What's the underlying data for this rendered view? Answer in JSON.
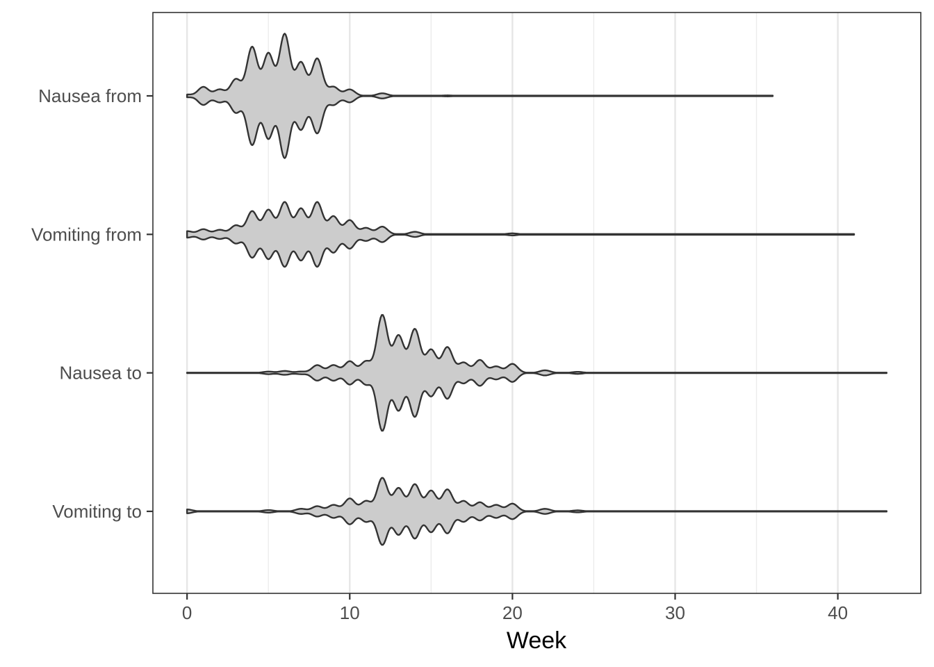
{
  "chart_data": {
    "type": "violin",
    "orientation": "horizontal",
    "title": "",
    "xlabel": "Week",
    "ylabel": "",
    "xlim": [
      -2.1,
      45.1
    ],
    "xticks": [
      0,
      10,
      20,
      30,
      40
    ],
    "xtick_labels": [
      "0",
      "10",
      "20",
      "30",
      "40"
    ],
    "grid": {
      "major_x": true,
      "minor_x": true,
      "y": false
    },
    "fill_color": "#cccccc",
    "outline_color": "#333333",
    "categories": [
      "Nausea from",
      "Vomiting from",
      "Nausea to",
      "Vomiting to"
    ],
    "series": [
      {
        "name": "Nausea from",
        "range": [
          0,
          36
        ],
        "density": [
          [
            0,
            0.01
          ],
          [
            1,
            0.07
          ],
          [
            2,
            0.05
          ],
          [
            3,
            0.13
          ],
          [
            4,
            0.38
          ],
          [
            5,
            0.33
          ],
          [
            6,
            0.48
          ],
          [
            7,
            0.26
          ],
          [
            8,
            0.29
          ],
          [
            9,
            0.07
          ],
          [
            10,
            0.05
          ],
          [
            12,
            0.02
          ],
          [
            16,
            0.004
          ],
          [
            36,
            0.002
          ]
        ]
      },
      {
        "name": "Vomiting from",
        "range": [
          0,
          41
        ],
        "density": [
          [
            0,
            0.025
          ],
          [
            1,
            0.04
          ],
          [
            2,
            0.035
          ],
          [
            3,
            0.07
          ],
          [
            4,
            0.18
          ],
          [
            5,
            0.19
          ],
          [
            6,
            0.25
          ],
          [
            7,
            0.2
          ],
          [
            8,
            0.25
          ],
          [
            9,
            0.14
          ],
          [
            10,
            0.11
          ],
          [
            11,
            0.05
          ],
          [
            12,
            0.06
          ],
          [
            14,
            0.02
          ],
          [
            20,
            0.008
          ],
          [
            41,
            0.003
          ]
        ]
      },
      {
        "name": "Nausea to",
        "range": [
          0,
          43
        ],
        "density": [
          [
            0,
            0.002
          ],
          [
            5,
            0.01
          ],
          [
            6,
            0.015
          ],
          [
            7,
            0.01
          ],
          [
            8,
            0.06
          ],
          [
            9,
            0.06
          ],
          [
            10,
            0.09
          ],
          [
            11,
            0.09
          ],
          [
            12,
            0.45
          ],
          [
            13,
            0.29
          ],
          [
            14,
            0.34
          ],
          [
            15,
            0.18
          ],
          [
            16,
            0.2
          ],
          [
            17,
            0.08
          ],
          [
            18,
            0.1
          ],
          [
            19,
            0.05
          ],
          [
            20,
            0.07
          ],
          [
            22,
            0.02
          ],
          [
            24,
            0.008
          ],
          [
            43,
            0.002
          ]
        ]
      },
      {
        "name": "Vomiting to",
        "range": [
          0,
          43
        ],
        "density": [
          [
            0,
            0.015
          ],
          [
            5,
            0.01
          ],
          [
            7,
            0.02
          ],
          [
            8,
            0.04
          ],
          [
            9,
            0.05
          ],
          [
            10,
            0.1
          ],
          [
            11,
            0.08
          ],
          [
            12,
            0.26
          ],
          [
            13,
            0.18
          ],
          [
            14,
            0.21
          ],
          [
            15,
            0.16
          ],
          [
            16,
            0.17
          ],
          [
            17,
            0.08
          ],
          [
            18,
            0.07
          ],
          [
            19,
            0.05
          ],
          [
            20,
            0.06
          ],
          [
            22,
            0.02
          ],
          [
            24,
            0.008
          ],
          [
            43,
            0.002
          ]
        ]
      }
    ]
  }
}
